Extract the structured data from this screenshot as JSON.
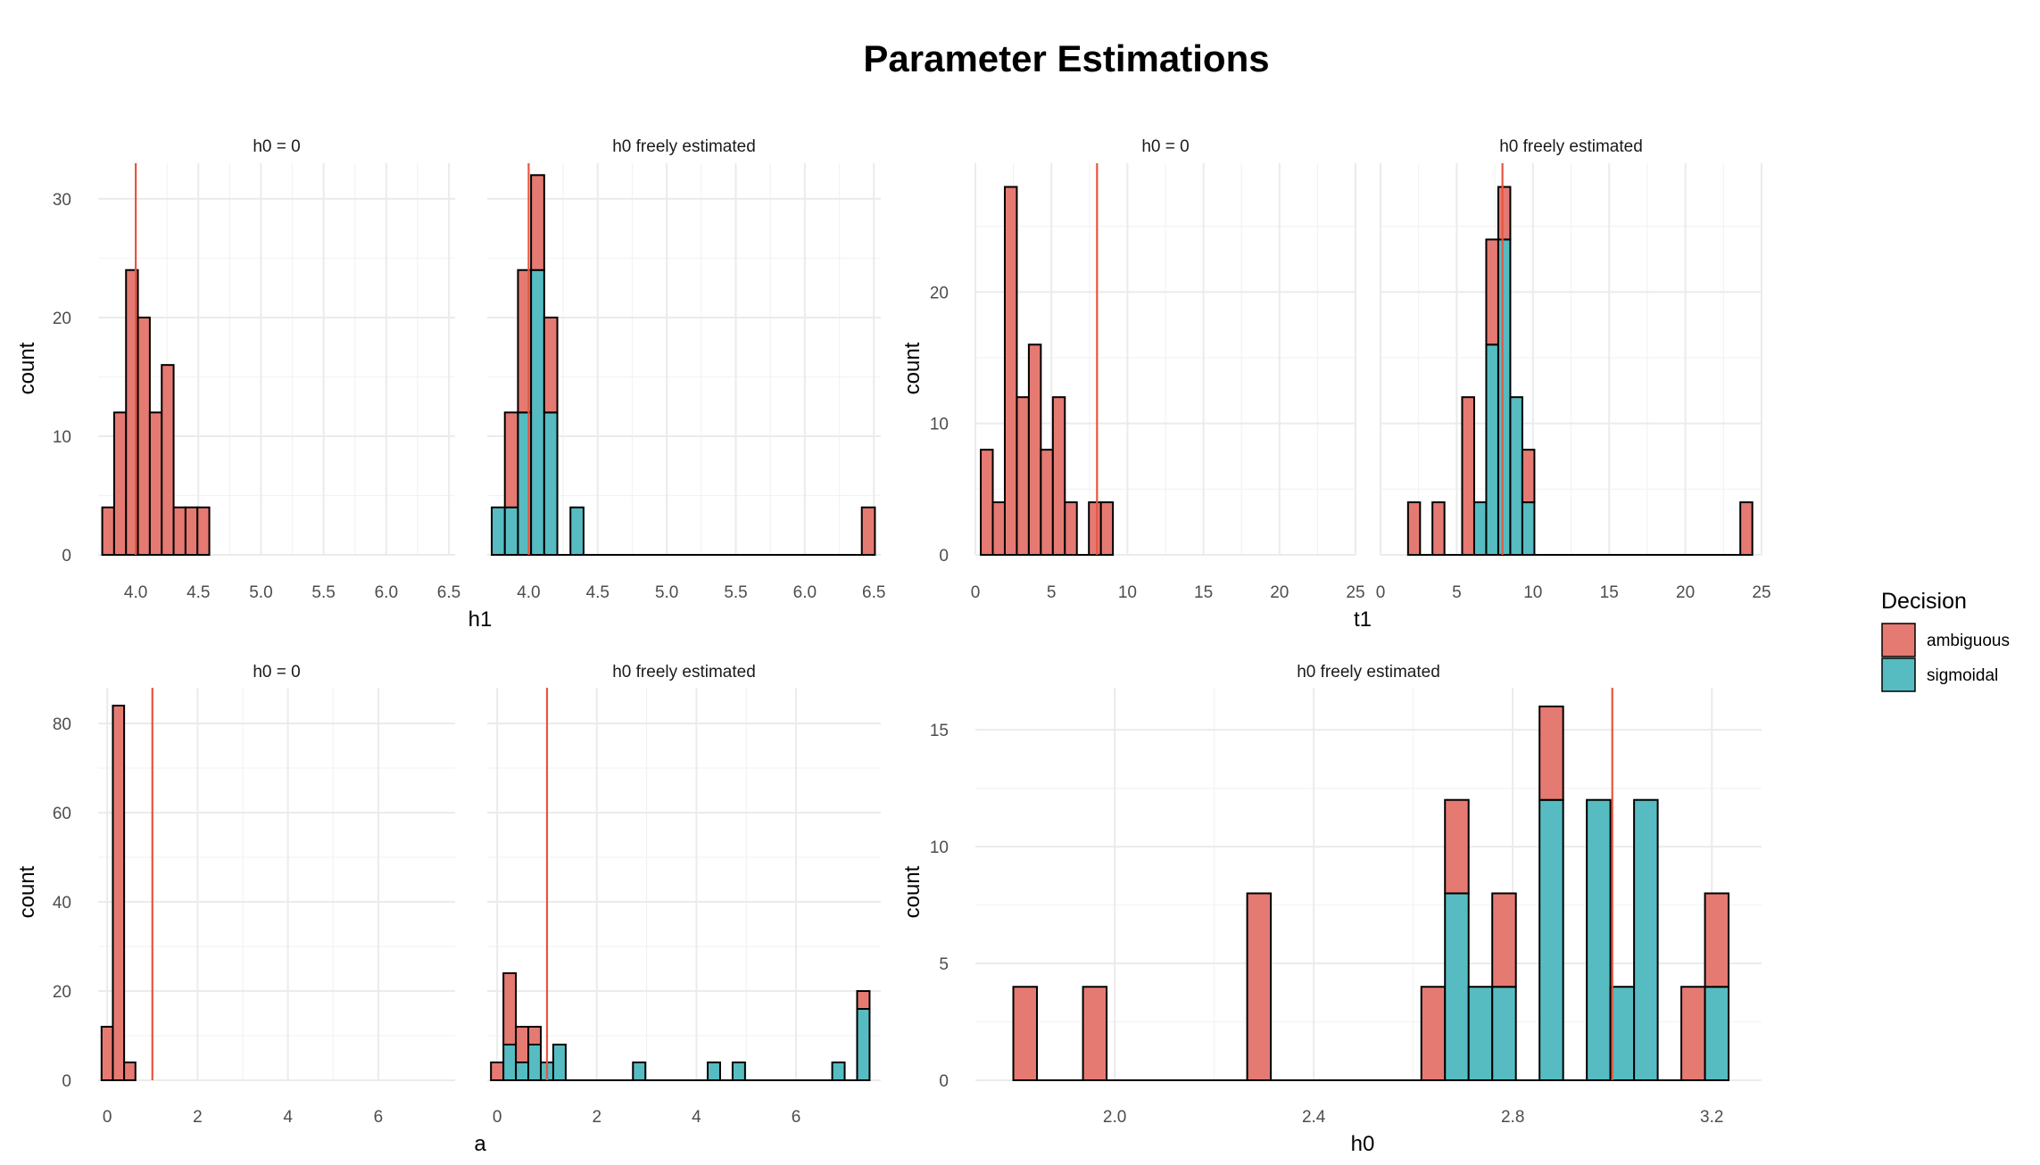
{
  "title": "Parameter Estimations",
  "colors": {
    "ambiguous": "#E57A72",
    "sigmoidal": "#56BCC2",
    "refline": "#E8553F",
    "grid": "#EBEBEB",
    "outline": "#000000"
  },
  "legend": {
    "title": "Decision",
    "items": [
      {
        "label": "ambiguous",
        "color": "#E57A72"
      },
      {
        "label": "sigmoidal",
        "color": "#56BCC2"
      }
    ],
    "position": "right"
  },
  "chart_data": [
    {
      "type": "bar",
      "name": "h1-panel",
      "xlabel": "h1",
      "ylabel": "count",
      "facets": [
        "h0 = 0",
        "h0 freely estimated"
      ],
      "xlim": [
        3.7,
        6.55
      ],
      "ylim": [
        0,
        33
      ],
      "xticks": [
        4.0,
        4.5,
        5.0,
        5.5,
        6.0,
        6.5
      ],
      "xtick_labels": [
        "4.0",
        "4.5",
        "5.0",
        "5.5",
        "6.0",
        "6.5"
      ],
      "yticks": [
        0,
        10,
        20,
        30
      ],
      "refline": 4.0,
      "bin_width": 0.095,
      "bins": {
        "h0 = 0": [
          {
            "x": 3.78,
            "ambiguous": 4,
            "sigmoidal": 0
          },
          {
            "x": 3.875,
            "ambiguous": 12,
            "sigmoidal": 0
          },
          {
            "x": 3.97,
            "ambiguous": 24,
            "sigmoidal": 0
          },
          {
            "x": 4.065,
            "ambiguous": 20,
            "sigmoidal": 0
          },
          {
            "x": 4.16,
            "ambiguous": 12,
            "sigmoidal": 0
          },
          {
            "x": 4.255,
            "ambiguous": 16,
            "sigmoidal": 0
          },
          {
            "x": 4.35,
            "ambiguous": 4,
            "sigmoidal": 0
          },
          {
            "x": 4.445,
            "ambiguous": 4,
            "sigmoidal": 0
          },
          {
            "x": 4.54,
            "ambiguous": 4,
            "sigmoidal": 0
          }
        ],
        "h0 freely estimated": [
          {
            "x": 3.78,
            "ambiguous": 0,
            "sigmoidal": 4
          },
          {
            "x": 3.875,
            "ambiguous": 8,
            "sigmoidal": 4
          },
          {
            "x": 3.97,
            "ambiguous": 12,
            "sigmoidal": 12
          },
          {
            "x": 4.065,
            "ambiguous": 8,
            "sigmoidal": 24
          },
          {
            "x": 4.16,
            "ambiguous": 8,
            "sigmoidal": 12
          },
          {
            "x": 4.35,
            "ambiguous": 0,
            "sigmoidal": 4
          },
          {
            "x": 6.46,
            "ambiguous": 4,
            "sigmoidal": 0
          }
        ]
      }
    },
    {
      "type": "bar",
      "name": "t1-panel",
      "xlabel": "t1",
      "ylabel": "count",
      "facets": [
        "h0 = 0",
        "h0 freely estimated"
      ],
      "xlim": [
        0,
        25
      ],
      "ylim": [
        0,
        29.8
      ],
      "xticks": [
        0,
        5,
        10,
        15,
        20,
        25
      ],
      "xtick_labels": [
        "0",
        "5",
        "10",
        "15",
        "20",
        "25"
      ],
      "yticks": [
        0,
        10,
        20
      ],
      "refline": 8,
      "bin_width": 0.79,
      "bins": {
        "h0 = 0": [
          {
            "x": 0.75,
            "ambiguous": 8,
            "sigmoidal": 0
          },
          {
            "x": 1.54,
            "ambiguous": 4,
            "sigmoidal": 0
          },
          {
            "x": 2.33,
            "ambiguous": 28,
            "sigmoidal": 0
          },
          {
            "x": 3.12,
            "ambiguous": 12,
            "sigmoidal": 0
          },
          {
            "x": 3.91,
            "ambiguous": 16,
            "sigmoidal": 0
          },
          {
            "x": 4.7,
            "ambiguous": 8,
            "sigmoidal": 0
          },
          {
            "x": 5.49,
            "ambiguous": 12,
            "sigmoidal": 0
          },
          {
            "x": 6.28,
            "ambiguous": 4,
            "sigmoidal": 0
          },
          {
            "x": 7.86,
            "ambiguous": 4,
            "sigmoidal": 0
          },
          {
            "x": 8.65,
            "ambiguous": 4,
            "sigmoidal": 0
          }
        ],
        "h0 freely estimated": [
          {
            "x": 2.2,
            "ambiguous": 4,
            "sigmoidal": 0
          },
          {
            "x": 3.8,
            "ambiguous": 4,
            "sigmoidal": 0
          },
          {
            "x": 5.75,
            "ambiguous": 12,
            "sigmoidal": 0
          },
          {
            "x": 6.54,
            "ambiguous": 0,
            "sigmoidal": 4
          },
          {
            "x": 7.33,
            "ambiguous": 8,
            "sigmoidal": 16
          },
          {
            "x": 8.12,
            "ambiguous": 4,
            "sigmoidal": 24
          },
          {
            "x": 8.91,
            "ambiguous": 0,
            "sigmoidal": 12
          },
          {
            "x": 9.7,
            "ambiguous": 4,
            "sigmoidal": 4
          },
          {
            "x": 24.0,
            "ambiguous": 4,
            "sigmoidal": 0
          }
        ]
      }
    },
    {
      "type": "bar",
      "name": "a-panel",
      "xlabel": "a",
      "ylabel": "count",
      "facets": [
        "h0 = 0",
        "h0 freely estimated"
      ],
      "xlim": [
        -0.2,
        7.7
      ],
      "ylim": [
        0,
        88
      ],
      "xticks": [
        0,
        2,
        4,
        6
      ],
      "xtick_labels": [
        "0",
        "2",
        "4",
        "6"
      ],
      "yticks": [
        0,
        20,
        40,
        60,
        80
      ],
      "refline": 1.0,
      "bin_width": 0.25,
      "bins": {
        "h0 = 0": [
          {
            "x": 0.0,
            "ambiguous": 12,
            "sigmoidal": 0
          },
          {
            "x": 0.25,
            "ambiguous": 84,
            "sigmoidal": 0
          },
          {
            "x": 0.5,
            "ambiguous": 4,
            "sigmoidal": 0
          }
        ],
        "h0 freely estimated": [
          {
            "x": 0.0,
            "ambiguous": 4,
            "sigmoidal": 0
          },
          {
            "x": 0.25,
            "ambiguous": 16,
            "sigmoidal": 8
          },
          {
            "x": 0.5,
            "ambiguous": 8,
            "sigmoidal": 4
          },
          {
            "x": 0.75,
            "ambiguous": 4,
            "sigmoidal": 8
          },
          {
            "x": 1.0,
            "ambiguous": 0,
            "sigmoidal": 4
          },
          {
            "x": 1.25,
            "ambiguous": 0,
            "sigmoidal": 8
          },
          {
            "x": 2.85,
            "ambiguous": 0,
            "sigmoidal": 4
          },
          {
            "x": 4.35,
            "ambiguous": 0,
            "sigmoidal": 4
          },
          {
            "x": 4.85,
            "ambiguous": 0,
            "sigmoidal": 4
          },
          {
            "x": 6.85,
            "ambiguous": 0,
            "sigmoidal": 4
          },
          {
            "x": 7.35,
            "ambiguous": 4,
            "sigmoidal": 16
          }
        ]
      }
    },
    {
      "type": "bar",
      "name": "h0-panel",
      "xlabel": "h0",
      "ylabel": "count",
      "facets": [
        "h0 freely estimated"
      ],
      "xlim": [
        1.72,
        3.3
      ],
      "ylim": [
        0,
        16.8
      ],
      "xticks": [
        2.0,
        2.4,
        2.8,
        3.2
      ],
      "xtick_labels": [
        "2.0",
        "2.4",
        "2.8",
        "3.2"
      ],
      "yticks": [
        0,
        5,
        10,
        15
      ],
      "refline": 3.0,
      "bin_width": 0.0475,
      "bins": {
        "h0 freely estimated": [
          {
            "x": 1.82,
            "ambiguous": 4,
            "sigmoidal": 0
          },
          {
            "x": 1.96,
            "ambiguous": 4,
            "sigmoidal": 0
          },
          {
            "x": 2.29,
            "ambiguous": 8,
            "sigmoidal": 0
          },
          {
            "x": 2.64,
            "ambiguous": 4,
            "sigmoidal": 0
          },
          {
            "x": 2.6875,
            "ambiguous": 4,
            "sigmoidal": 8
          },
          {
            "x": 2.735,
            "ambiguous": 0,
            "sigmoidal": 4
          },
          {
            "x": 2.7825,
            "ambiguous": 4,
            "sigmoidal": 4
          },
          {
            "x": 2.8775,
            "ambiguous": 4,
            "sigmoidal": 12
          },
          {
            "x": 2.9725,
            "ambiguous": 0,
            "sigmoidal": 12
          },
          {
            "x": 3.02,
            "ambiguous": 0,
            "sigmoidal": 4
          },
          {
            "x": 3.0675,
            "ambiguous": 0,
            "sigmoidal": 12
          },
          {
            "x": 3.1625,
            "ambiguous": 4,
            "sigmoidal": 0
          },
          {
            "x": 3.21,
            "ambiguous": 4,
            "sigmoidal": 4
          }
        ]
      }
    }
  ]
}
